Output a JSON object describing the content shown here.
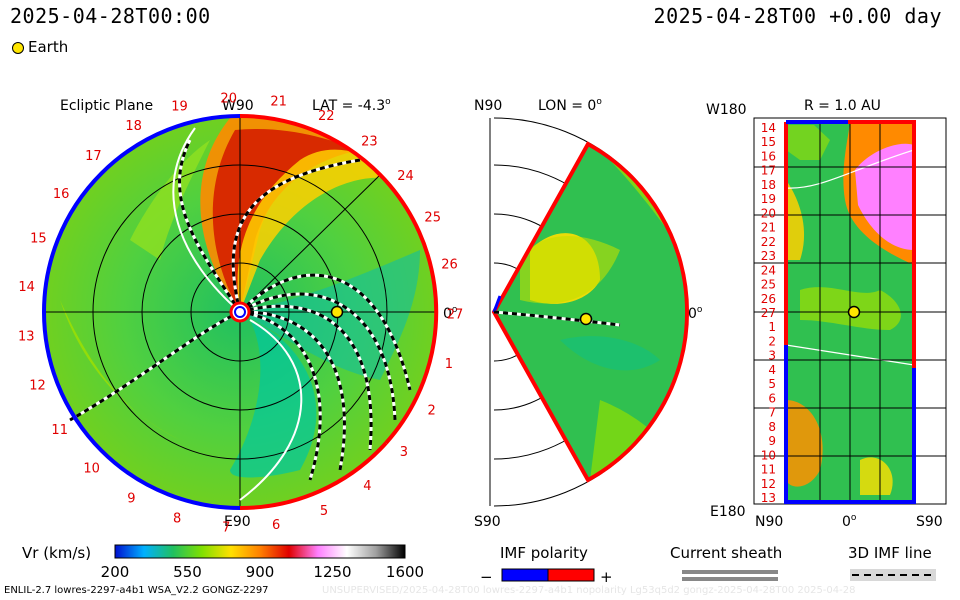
{
  "header": {
    "date_left": "2025-04-28T00:00",
    "date_right": "2025-04-28T00 +0.00 day",
    "earth_legend": "Earth"
  },
  "ecliptic": {
    "title": "Ecliptic Plane",
    "top_label": "W90",
    "bottom_label": "E90",
    "lat_label": "LAT = -4.3",
    "deg_label": "0",
    "lat_sup": "o",
    "deg_sup": "o",
    "carrington_ticks": [
      "20",
      "21",
      "22",
      "23",
      "24",
      "25",
      "26",
      "27",
      "1",
      "2",
      "3",
      "4",
      "5",
      "6",
      "7",
      "8",
      "9",
      "10",
      "11",
      "12",
      "13",
      "14",
      "15",
      "16",
      "17",
      "18",
      "19"
    ]
  },
  "meridional": {
    "top_label": "N90",
    "lon_label": "LON = 0",
    "lon_sup": "o",
    "bottom_label": "S90",
    "deg_label": "0",
    "deg_sup": "o"
  },
  "synoptic": {
    "top_label": "W180",
    "r_label": "R = 1.0 AU",
    "bottom_label": "E180",
    "x_labels": [
      "N90",
      "0",
      "S90"
    ],
    "x_sup": "o",
    "y_ticks": [
      "14",
      "15",
      "16",
      "17",
      "18",
      "19",
      "20",
      "21",
      "22",
      "23",
      "24",
      "25",
      "26",
      "27",
      "1",
      "2",
      "3",
      "4",
      "5",
      "6",
      "7",
      "8",
      "9",
      "10",
      "11",
      "12",
      "13"
    ]
  },
  "colorbar": {
    "label": "Vr (km/s)",
    "ticks": [
      "200",
      "550",
      "900",
      "1250",
      "1600"
    ],
    "stops": [
      "#0010d0",
      "#00b0ff",
      "#20c060",
      "#80e000",
      "#ffe000",
      "#ff8000",
      "#e00000",
      "#ff80ff",
      "#ffffff",
      "#a0a0a0",
      "#000000"
    ]
  },
  "legends": {
    "imf_polarity": "IMF polarity",
    "minus": "−",
    "plus": "+",
    "current_sheath": "Current sheath",
    "imf_line": "3D IMF line"
  },
  "footer": {
    "left": "ENLIL-2.7 lowres-2297-a4b1 WSA_V2.2 GONGZ-2297",
    "right": "UNSUPERVISED/2025-04-28T00 lowres-2297-a4b1 nopolarity Lg53q5d2 gongz-2025-04-28T00   2025-04-28"
  },
  "colors": {
    "positive": "#ff0000",
    "negative": "#0000ff",
    "earth": "#ffe600"
  }
}
